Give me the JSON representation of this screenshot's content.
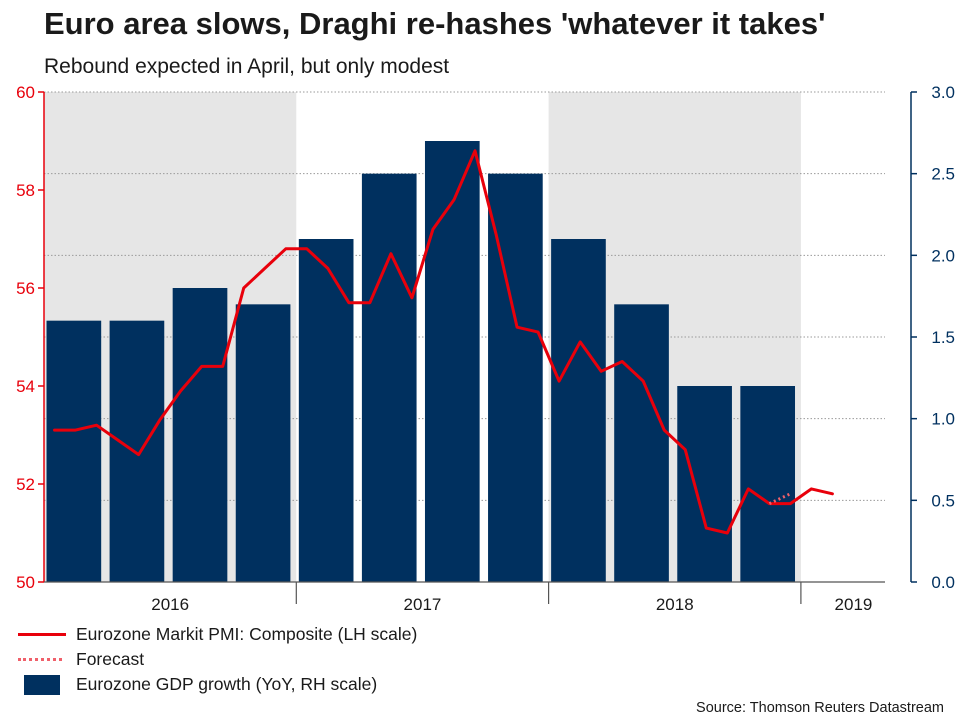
{
  "chart_data": {
    "type": "bar+line",
    "title": "Euro area slows, Draghi re-hashes 'whatever it takes'",
    "subtitle": "Rebound expected in April, but only modest",
    "left_axis": {
      "min": 50,
      "max": 60,
      "ticks": [
        "50",
        "52",
        "54",
        "56",
        "58",
        "60"
      ],
      "color": "#e8000b"
    },
    "right_axis": {
      "min": 0,
      "max": 3,
      "ticks": [
        "0.0",
        "0.5",
        "1.0",
        "1.5",
        "2.0",
        "2.5",
        "3.0"
      ],
      "color": "#00305f"
    },
    "x_axis": {
      "months_total": 40,
      "year_labels": [
        {
          "label": "2016",
          "center_month": 6
        },
        {
          "label": "2017",
          "center_month": 18
        },
        {
          "label": "2018",
          "center_month": 30
        },
        {
          "label": "2019",
          "center_month": 38.5
        }
      ],
      "year_boundaries": [
        12,
        24,
        36
      ],
      "shaded_ranges": [
        [
          0,
          12
        ],
        [
          24,
          36
        ]
      ]
    },
    "series": [
      {
        "name": "Eurozone GDP growth (YoY, RH scale)",
        "type": "bar",
        "color": "#00305f",
        "quarter_starts": [
          0,
          3,
          6,
          9,
          12,
          15,
          18,
          21,
          24,
          27,
          30,
          33
        ],
        "values": [
          1.6,
          1.6,
          1.8,
          1.7,
          2.1,
          2.5,
          2.7,
          2.5,
          2.1,
          1.7,
          1.2,
          1.2
        ]
      },
      {
        "name": "Eurozone Markit PMI: Composite (LH scale)",
        "type": "line",
        "color": "#e8000b",
        "month_index": [
          0.5,
          1.5,
          2.5,
          3.5,
          4.5,
          5.5,
          6.5,
          7.5,
          8.5,
          9.5,
          10.5,
          11.5,
          12.5,
          13.5,
          14.5,
          15.5,
          16.5,
          17.5,
          18.5,
          19.5,
          20.5,
          21.5,
          22.5,
          23.5,
          24.5,
          25.5,
          26.5,
          27.5,
          28.5,
          29.5,
          30.5,
          31.5,
          32.5,
          33.5,
          34.5,
          35.5,
          36.5,
          37.5
        ],
        "values": [
          53.1,
          53.1,
          53.2,
          52.9,
          52.6,
          53.3,
          53.9,
          54.4,
          54.4,
          56.0,
          56.4,
          56.8,
          56.8,
          56.4,
          55.7,
          55.7,
          56.7,
          55.8,
          57.2,
          57.8,
          58.8,
          57.1,
          55.2,
          55.1,
          54.1,
          54.9,
          54.3,
          54.5,
          54.1,
          53.1,
          52.7,
          51.1,
          51.0,
          51.9,
          51.6,
          51.6,
          51.9,
          51.8
        ]
      },
      {
        "name": "Forecast",
        "type": "line-dotted",
        "color": "#f0606a",
        "month_index": [
          34.5,
          35.5
        ],
        "values": [
          51.6,
          51.8
        ]
      }
    ]
  },
  "legend": {
    "pmi": "Eurozone Markit PMI: Composite (LH scale)",
    "forecast": "Forecast",
    "gdp": "Eurozone GDP growth (YoY, RH scale)"
  },
  "source": "Source: Thomson Reuters Datastream"
}
